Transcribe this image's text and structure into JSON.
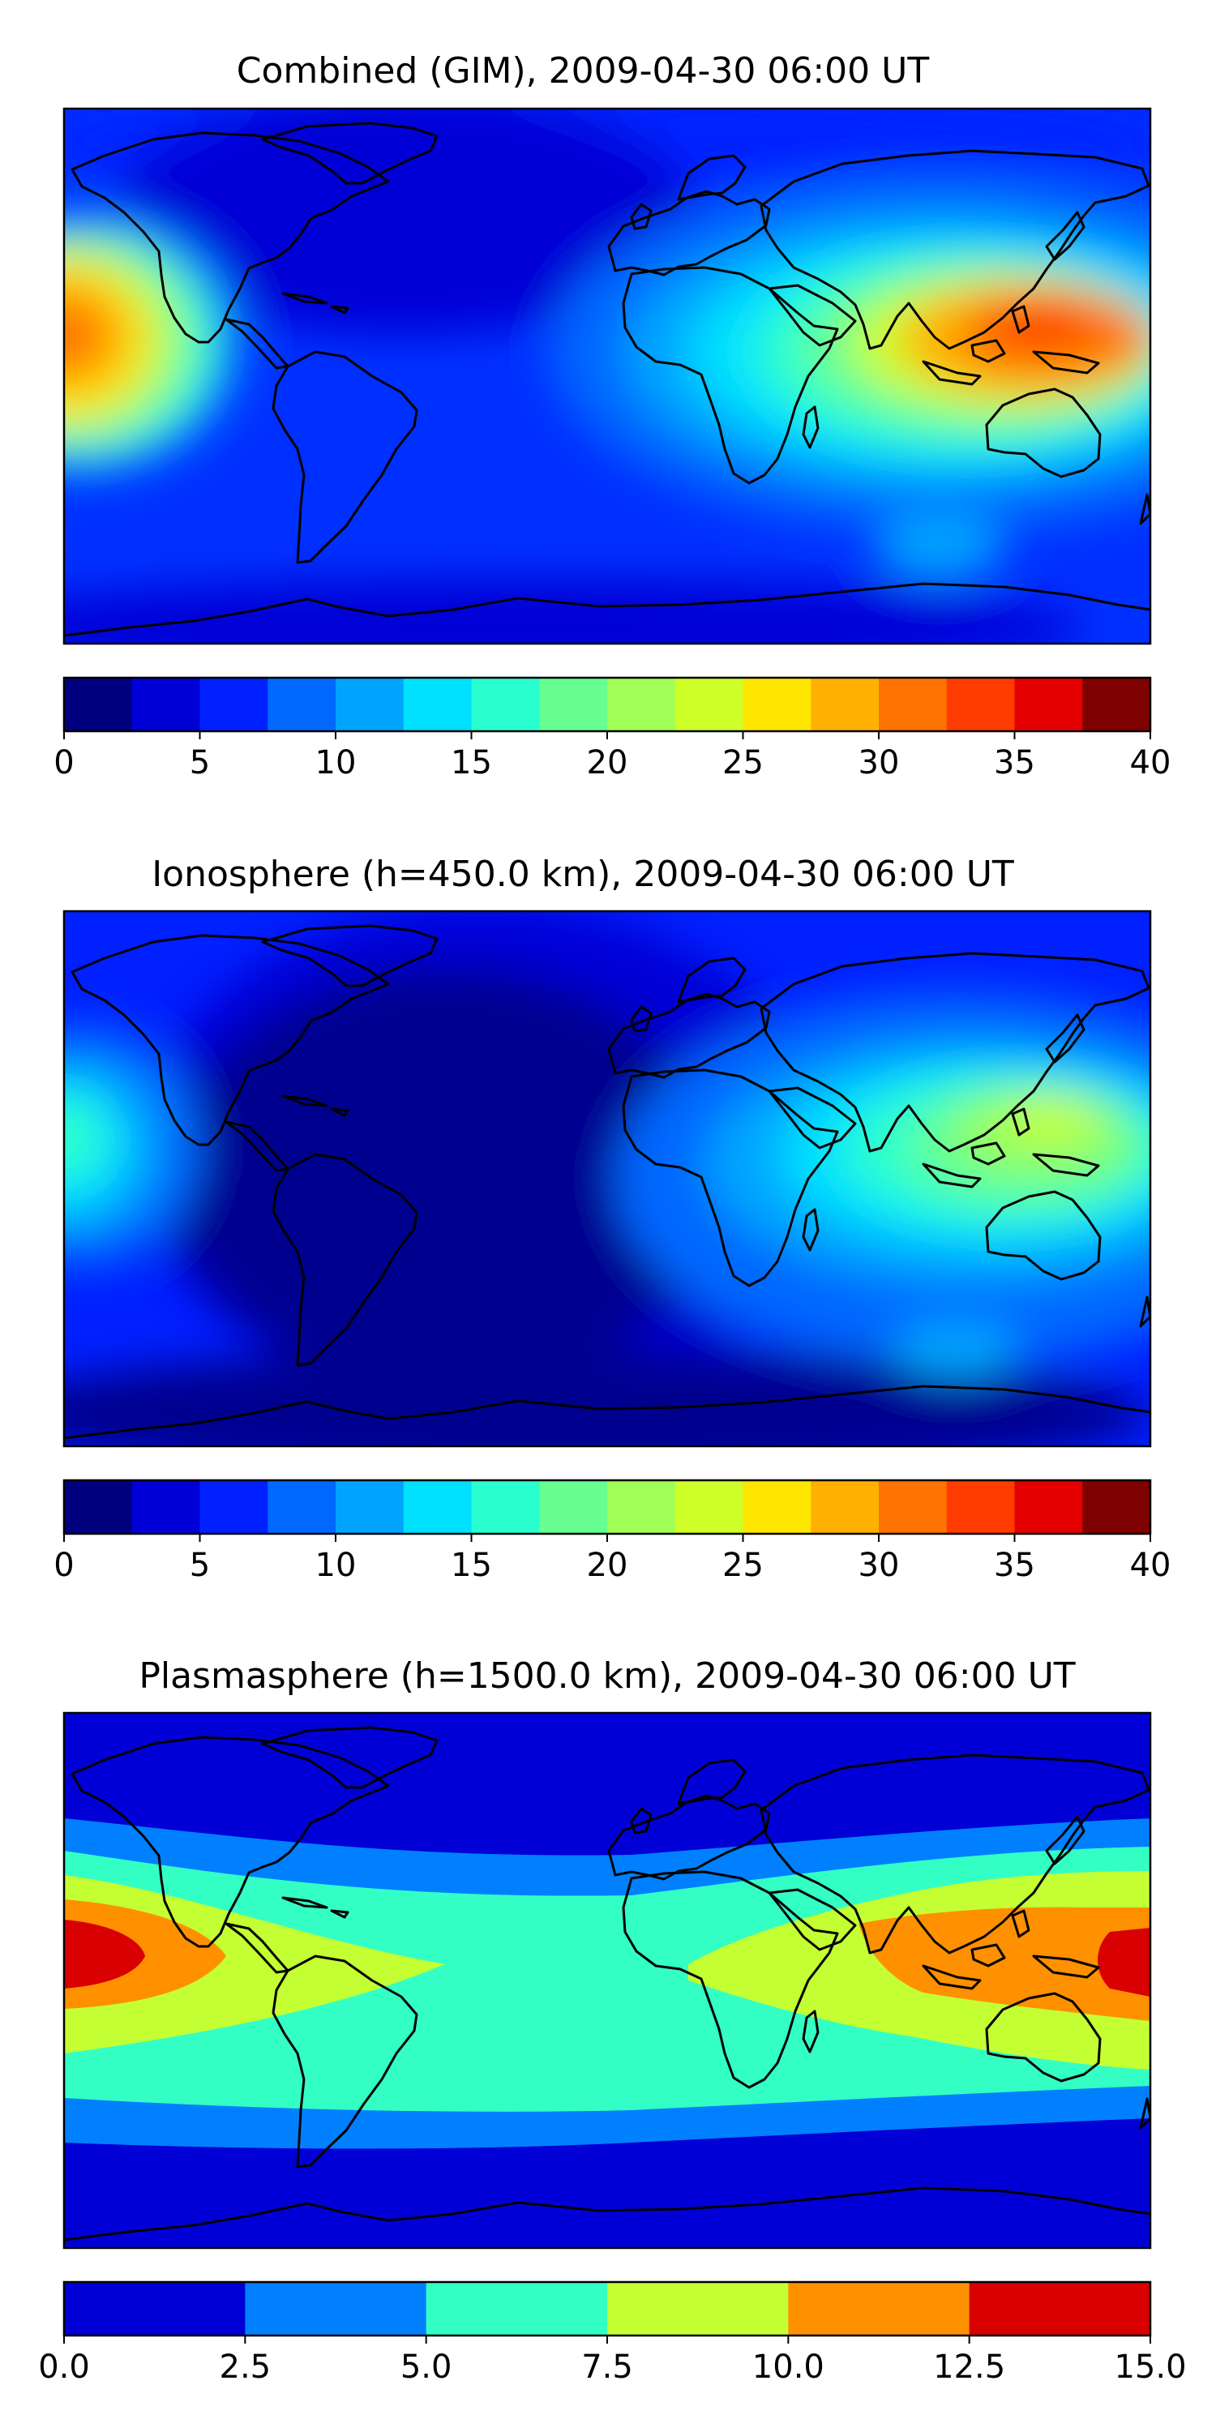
{
  "figure_type": "global map",
  "panels": [
    {
      "title": "Combined (GIM), 2009-04-30 06:00 UT",
      "colorbar": {
        "ticks": [
          "0",
          "5",
          "10",
          "15",
          "20",
          "25",
          "30",
          "35",
          "40"
        ],
        "range": [
          0,
          40
        ],
        "levels": 16,
        "colors": [
          "#00007f",
          "#0000d6",
          "#0020ff",
          "#0068ff",
          "#00a4ff",
          "#00e0ff",
          "#29ffce",
          "#66ff90",
          "#a0ff56",
          "#ceff29",
          "#ffe600",
          "#ffb000",
          "#ff7300",
          "#ff3b00",
          "#e40000",
          "#7f0000"
        ]
      }
    },
    {
      "title": "Ionosphere  (h=450.0 km), 2009-04-30 06:00 UT",
      "colorbar": {
        "ticks": [
          "0",
          "5",
          "10",
          "15",
          "20",
          "25",
          "30",
          "35",
          "40"
        ],
        "range": [
          0,
          40
        ],
        "levels": 16,
        "colors": [
          "#00007f",
          "#0000d6",
          "#0020ff",
          "#0068ff",
          "#00a4ff",
          "#00e0ff",
          "#29ffce",
          "#66ff90",
          "#a0ff56",
          "#ceff29",
          "#ffe600",
          "#ffb000",
          "#ff7300",
          "#ff3b00",
          "#e40000",
          "#7f0000"
        ]
      }
    },
    {
      "title": "Plasmasphere (h=1500.0 km), 2009-04-30 06:00 UT",
      "colorbar": {
        "ticks": [
          "0.0",
          "2.5",
          "5.0",
          "7.5",
          "10.0",
          "12.5",
          "15.0"
        ],
        "range": [
          0,
          15
        ],
        "levels": 6,
        "colors": [
          "#0000d6",
          "#0080ff",
          "#33ffc4",
          "#c4ff33",
          "#ff9000",
          "#d80000"
        ]
      }
    }
  ]
}
